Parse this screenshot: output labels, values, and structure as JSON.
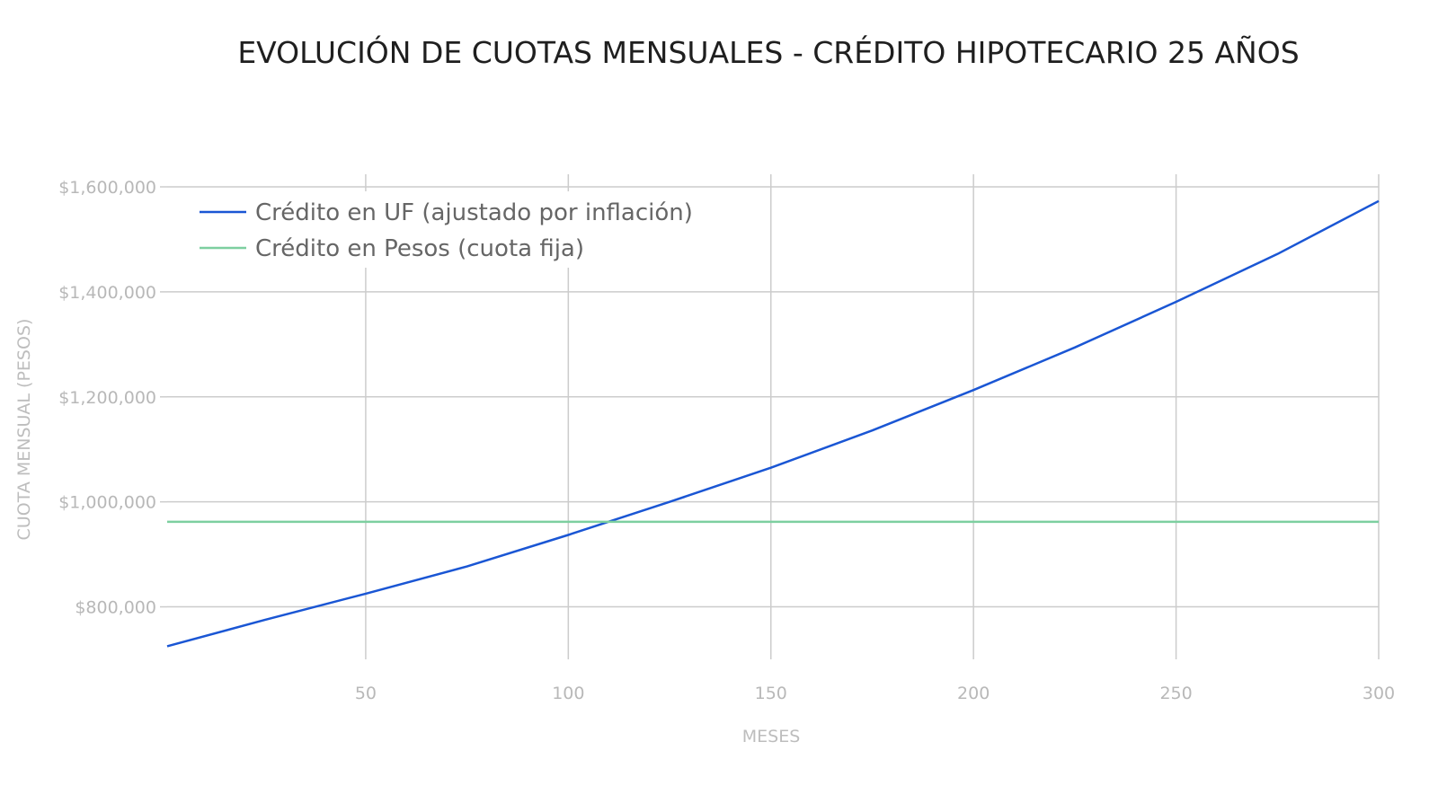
{
  "chart_data": {
    "type": "line",
    "title": "EVOLUCIÓN DE CUOTAS MENSUALES - CRÉDITO HIPOTECARIO 25 AÑOS",
    "xlabel": "MESES",
    "ylabel": "CUOTA MENSUAL (PESOS)",
    "xlim": [
      1,
      300
    ],
    "ylim": [
      700000,
      1600000
    ],
    "x_ticks": [
      50,
      100,
      150,
      200,
      250,
      300
    ],
    "y_ticks": [
      800000,
      1000000,
      1200000,
      1400000,
      1600000
    ],
    "y_tick_labels": [
      "$800,000",
      "$1,000,000",
      "$1,200,000",
      "$1,400,000",
      "$1,600,000"
    ],
    "grid": true,
    "legend_position": "top-left",
    "series": [
      {
        "name": "Crédito en UF (ajustado por inflación)",
        "color": "#1a56d4",
        "x": [
          1,
          25,
          50,
          75,
          100,
          125,
          150,
          175,
          200,
          225,
          250,
          275,
          300
        ],
        "values": [
          725000,
          775000,
          825000,
          877000,
          937000,
          1000000,
          1065000,
          1136000,
          1213000,
          1294000,
          1381000,
          1472000,
          1573000
        ]
      },
      {
        "name": "Crédito en Pesos (cuota fija)",
        "color": "#7dcfa0",
        "x": [
          1,
          300
        ],
        "values": [
          962000,
          962000
        ]
      }
    ]
  }
}
